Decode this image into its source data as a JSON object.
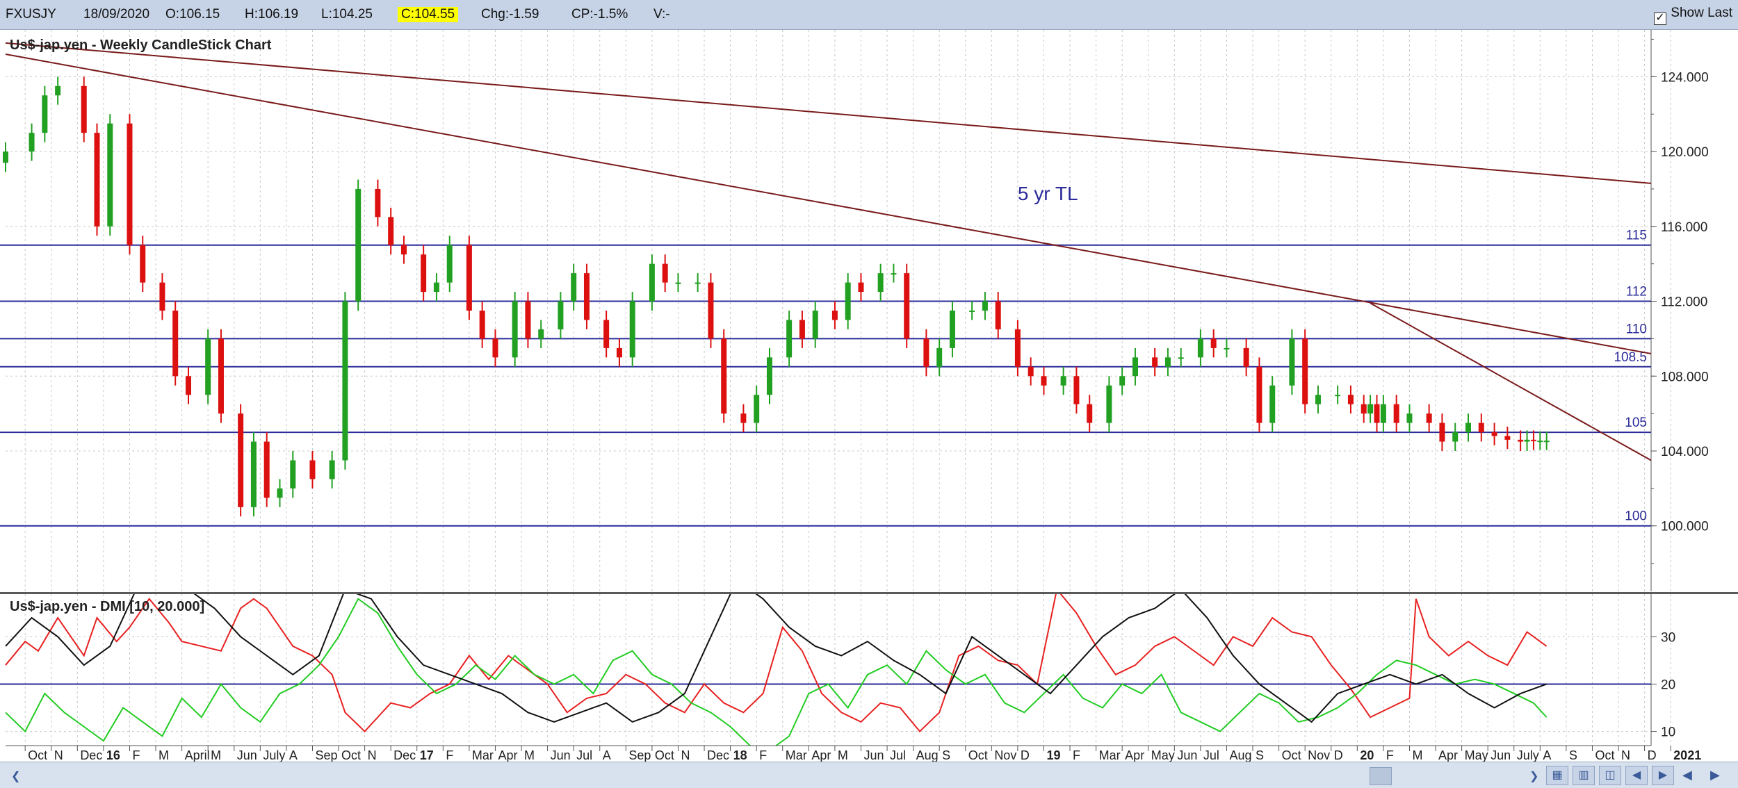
{
  "toolbar": {
    "symbol": "FXUSJY",
    "date": "18/09/2020",
    "open": "O:106.15",
    "high": "H:106.19",
    "low": "L:104.25",
    "close": "C:104.55",
    "change": "Chg:-1.59",
    "change_pct": "CP:-1.5%",
    "volume": "V:-",
    "show_last_label": "Show Last",
    "show_last_checked": true,
    "close_highlight_color": "#ffff00"
  },
  "chart_data": [
    {
      "type": "candlestick",
      "title": "Us$-jap.yen - Weekly CandleStick Chart",
      "ylim": [
        96.5,
        126.5
      ],
      "y_ticks": [
        "124.000",
        "120.000",
        "116.000",
        "112.000",
        "108.000",
        "104.000",
        "100.000"
      ],
      "y_tick_values": [
        124,
        120,
        116,
        112,
        108,
        104,
        100
      ],
      "x_ticks": [
        "Oct",
        "N",
        "Dec",
        "16",
        "F",
        "M",
        "April",
        "M",
        "Jun",
        "July",
        "A",
        "Sep",
        "Oct",
        "N",
        "Dec",
        "17",
        "F",
        "Mar",
        "Apr",
        "M",
        "Jun",
        "Jul",
        "A",
        "Sep",
        "Oct",
        "N",
        "Dec",
        "18",
        "F",
        "Mar",
        "Apr",
        "M",
        "Jun",
        "Jul",
        "Aug",
        "S",
        "Oct",
        "Nov",
        "D",
        "19",
        "F",
        "Mar",
        "Apr",
        "May",
        "Jun",
        "Jul",
        "Aug",
        "S",
        "Oct",
        "Nov",
        "D",
        "20",
        "F",
        "M",
        "Apr",
        "May",
        "Jun",
        "July",
        "A",
        "S",
        "Oct",
        "N",
        "D",
        "2021"
      ],
      "x_tick_weeks": [
        3,
        7,
        11,
        15,
        19,
        23,
        27,
        31,
        35,
        39,
        43,
        47,
        51,
        55,
        59,
        63,
        67,
        71,
        75,
        79,
        83,
        87,
        91,
        95,
        99,
        103,
        107,
        111,
        115,
        119,
        123,
        127,
        131,
        135,
        139,
        143,
        147,
        151,
        155,
        159,
        163,
        167,
        171,
        175,
        179,
        183,
        187,
        191,
        195,
        199,
        203,
        207,
        211,
        215,
        219,
        223,
        227,
        231,
        235,
        239,
        243,
        247,
        251,
        255
      ],
      "bold_ticks": [
        "16",
        "17",
        "18",
        "19",
        "20",
        "2021"
      ],
      "annotation": "5 yr TL",
      "levels": [
        {
          "label": "115",
          "value": 115
        },
        {
          "label": "112",
          "value": 112
        },
        {
          "label": "110",
          "value": 110
        },
        {
          "label": "108.5",
          "value": 108.5
        },
        {
          "label": "105",
          "value": 105
        },
        {
          "label": "100",
          "value": 100
        }
      ],
      "trendlines": [
        {
          "x": [
            0,
            252
          ],
          "y": [
            125.8,
            118.3
          ]
        },
        {
          "x": [
            0,
            252
          ],
          "y": [
            125.2,
            109.2
          ]
        },
        {
          "x": [
            209,
            252
          ],
          "y": [
            111.9,
            103.5
          ]
        }
      ],
      "weeks": 252,
      "candles_x": [
        0,
        4,
        6,
        8,
        12,
        14,
        16,
        19,
        21,
        24,
        26,
        28,
        31,
        33,
        36,
        38,
        40,
        42,
        44,
        47,
        50,
        52,
        54,
        57,
        59,
        61,
        64,
        66,
        68,
        71,
        73,
        75,
        78,
        80,
        82,
        85,
        87,
        89,
        92,
        94,
        96,
        99,
        101,
        103,
        106,
        108,
        110,
        113,
        115,
        117,
        120,
        122,
        124,
        127,
        129,
        131,
        134,
        136,
        138,
        141,
        143,
        145,
        148,
        150,
        152,
        155,
        157,
        159,
        162,
        164,
        166,
        169,
        171,
        173,
        176,
        178,
        180,
        183,
        185,
        187,
        190,
        192,
        194,
        197,
        199,
        201,
        204,
        206,
        208,
        209,
        210,
        211,
        213,
        215,
        218,
        220,
        222,
        224,
        226,
        228,
        230,
        232,
        233,
        234,
        235,
        236
      ],
      "candles_close": [
        120,
        121,
        123,
        123.5,
        121,
        116,
        121.5,
        115,
        113,
        111.5,
        108,
        107,
        110,
        106,
        101,
        104.5,
        101.5,
        102,
        103.5,
        102.5,
        103.5,
        112,
        118,
        116.5,
        115,
        114.5,
        112.5,
        113,
        115,
        111.5,
        110,
        109,
        112,
        110,
        110.5,
        112,
        113.5,
        111,
        109.5,
        109,
        112,
        114,
        113,
        113,
        113,
        110,
        106,
        105.5,
        107,
        109,
        111,
        110,
        111.5,
        111,
        113,
        112.5,
        113.5,
        113.5,
        110,
        108.5,
        109.5,
        111.5,
        111.5,
        112,
        110.5,
        108.5,
        108,
        107.5,
        108,
        106.5,
        105.5,
        107.5,
        108,
        109,
        108.5,
        109,
        109,
        110,
        109.5,
        109.5,
        108.5,
        105.5,
        107.5,
        110,
        106.5,
        107,
        107,
        106.5,
        106,
        106.5,
        105.5,
        106.5,
        105.5,
        106,
        105.5,
        104.5,
        105,
        105.5,
        105,
        104.8,
        104.6,
        104.5,
        104.6,
        104.55,
        104.55,
        104.55
      ]
    },
    {
      "type": "line",
      "title": "Us$-jap.yen - DMI [10, 20.000]",
      "ylim": [
        7,
        39
      ],
      "y_ticks": [
        "30",
        "20",
        "10"
      ],
      "y_tick_values": [
        30,
        20,
        10
      ],
      "reference_line": 20,
      "weeks": 252,
      "series": [
        {
          "color": "#e82020",
          "x": [
            0,
            3,
            5,
            8,
            10,
            12,
            14,
            17,
            19,
            22,
            25,
            27,
            30,
            33,
            36,
            38,
            40,
            42,
            44,
            47,
            50,
            52,
            55,
            57,
            59,
            62,
            65,
            68,
            71,
            74,
            77,
            80,
            83,
            86,
            89,
            92,
            95,
            98,
            101,
            104,
            107,
            110,
            113,
            116,
            119,
            122,
            125,
            128,
            131,
            134,
            137,
            140,
            143,
            146,
            149,
            152,
            155,
            158,
            161,
            164,
            167,
            170,
            173,
            176,
            179,
            182,
            185,
            188,
            191,
            194,
            197,
            200,
            203,
            206,
            209,
            212,
            215,
            216,
            218,
            221,
            224,
            227,
            230,
            233,
            236
          ],
          "y": [
            24,
            29,
            27,
            34,
            30,
            26,
            34,
            29,
            32,
            38,
            33,
            29,
            28,
            27,
            36,
            38,
            36,
            32,
            28,
            26,
            22,
            14,
            10,
            13,
            16,
            15,
            18,
            20,
            26,
            21,
            26,
            23,
            20,
            14,
            17,
            18,
            22,
            20,
            16,
            14,
            20,
            16,
            14,
            18,
            32,
            27,
            18,
            14,
            12,
            16,
            15,
            10,
            14,
            26,
            28,
            25,
            24,
            20,
            40,
            35,
            28,
            22,
            24,
            28,
            30,
            27,
            24,
            30,
            28,
            34,
            31,
            30,
            24,
            19,
            13,
            15,
            17,
            38,
            30,
            26,
            29,
            26,
            24,
            31,
            28
          ]
        },
        {
          "color": "#22cc22",
          "x": [
            0,
            3,
            6,
            9,
            12,
            15,
            18,
            21,
            24,
            27,
            30,
            33,
            36,
            39,
            42,
            45,
            48,
            51,
            54,
            57,
            60,
            63,
            66,
            69,
            72,
            75,
            78,
            81,
            84,
            87,
            90,
            93,
            96,
            99,
            102,
            105,
            108,
            111,
            114,
            117,
            120,
            123,
            126,
            129,
            132,
            135,
            138,
            141,
            144,
            147,
            150,
            153,
            156,
            159,
            162,
            165,
            168,
            171,
            174,
            177,
            180,
            183,
            186,
            189,
            192,
            195,
            198,
            201,
            204,
            207,
            210,
            213,
            216,
            219,
            222,
            225,
            228,
            231,
            234,
            236
          ],
          "y": [
            14,
            10,
            18,
            14,
            11,
            8,
            15,
            12,
            9,
            17,
            13,
            20,
            15,
            12,
            18,
            20,
            24,
            30,
            38,
            35,
            28,
            22,
            18,
            20,
            24,
            21,
            26,
            22,
            20,
            22,
            18,
            25,
            27,
            22,
            20,
            16,
            14,
            11,
            7,
            6,
            9,
            18,
            20,
            15,
            22,
            24,
            20,
            27,
            23,
            20,
            22,
            16,
            14,
            18,
            22,
            17,
            15,
            20,
            18,
            22,
            14,
            12,
            10,
            14,
            18,
            16,
            12,
            13,
            15,
            18,
            22,
            25,
            24,
            22,
            20,
            21,
            20,
            18,
            16,
            13
          ]
        },
        {
          "color": "#111111",
          "x": [
            0,
            4,
            8,
            12,
            16,
            20,
            24,
            28,
            32,
            36,
            40,
            44,
            48,
            52,
            56,
            60,
            64,
            68,
            72,
            76,
            80,
            84,
            88,
            92,
            96,
            100,
            104,
            108,
            112,
            116,
            120,
            124,
            128,
            132,
            136,
            140,
            144,
            148,
            152,
            156,
            160,
            164,
            168,
            172,
            176,
            180,
            184,
            188,
            192,
            196,
            200,
            204,
            208,
            212,
            216,
            220,
            224,
            228,
            232,
            236
          ],
          "y": [
            28,
            34,
            30,
            24,
            28,
            40,
            42,
            40,
            36,
            30,
            26,
            22,
            26,
            40,
            38,
            30,
            24,
            22,
            20,
            18,
            14,
            12,
            14,
            16,
            12,
            14,
            18,
            30,
            42,
            38,
            32,
            28,
            26,
            29,
            25,
            22,
            18,
            30,
            26,
            22,
            18,
            24,
            30,
            34,
            36,
            40,
            34,
            26,
            20,
            16,
            12,
            18,
            20,
            22,
            20,
            22,
            18,
            15,
            18,
            20
          ]
        }
      ]
    }
  ],
  "nav_icons": [
    "scroll-left-icon",
    "scroll-right-icon",
    "zoom-icon",
    "zoom-out-icon",
    "save-icon",
    "pan-left-icon",
    "pan-right-icon",
    "prev-icon",
    "next-icon"
  ]
}
